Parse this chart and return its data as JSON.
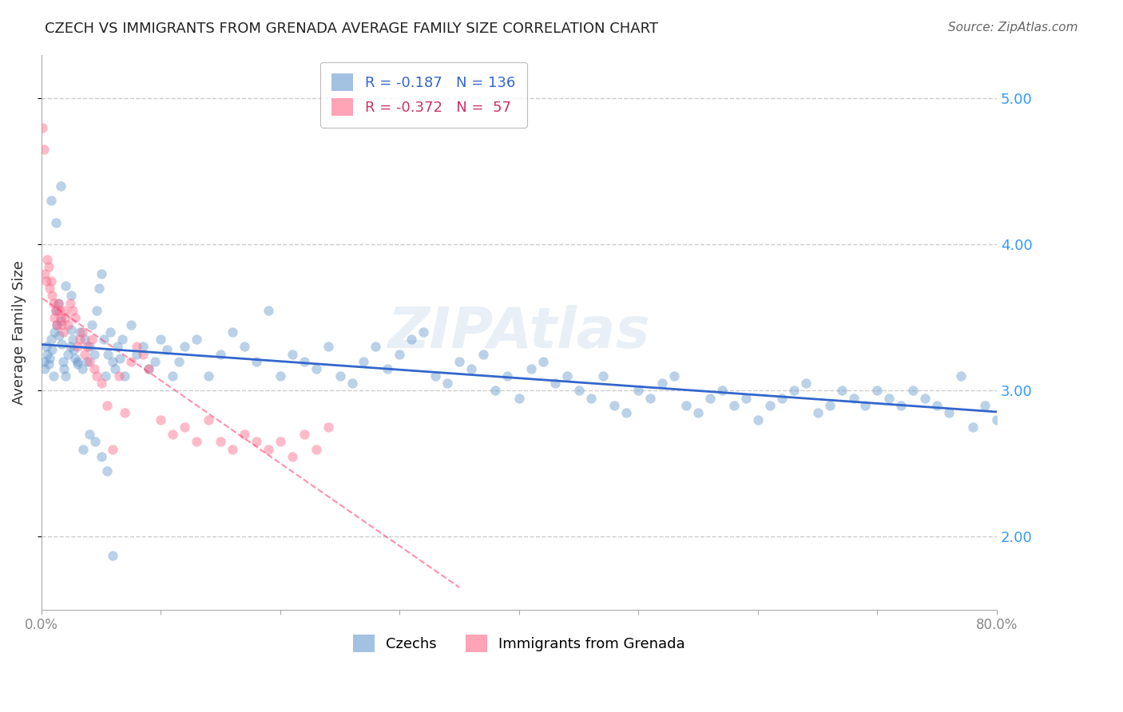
{
  "title": "CZECH VS IMMIGRANTS FROM GRENADA AVERAGE FAMILY SIZE CORRELATION CHART",
  "source": "Source: ZipAtlas.com",
  "ylabel": "Average Family Size",
  "watermark": "ZIPAtlas",
  "yticks": [
    2.0,
    3.0,
    4.0,
    5.0
  ],
  "ylim": [
    1.5,
    5.3
  ],
  "xlim": [
    0.0,
    0.8
  ],
  "xticks": [
    0.0,
    0.1,
    0.2,
    0.3,
    0.4,
    0.5,
    0.6,
    0.7,
    0.8
  ],
  "czechs_color": "#6699cc",
  "grenada_color": "#ff6688",
  "czechs_line_color": "#3366cc",
  "grenada_line_color": "#ff3366",
  "background_color": "#ffffff",
  "grid_color": "#cccccc",
  "right_tick_color": "#3399ff",
  "title_fontsize": 13,
  "source_fontsize": 11,
  "legend_fontsize": 13,
  "ylabel_fontsize": 13,
  "watermark_fontsize": 52,
  "scatter_alpha": 0.45,
  "scatter_size": 80,
  "czechs_scatter": {
    "x": [
      0.002,
      0.003,
      0.004,
      0.005,
      0.006,
      0.007,
      0.008,
      0.009,
      0.01,
      0.011,
      0.012,
      0.013,
      0.014,
      0.015,
      0.016,
      0.017,
      0.018,
      0.019,
      0.02,
      0.022,
      0.024,
      0.025,
      0.026,
      0.027,
      0.028,
      0.03,
      0.032,
      0.034,
      0.036,
      0.038,
      0.04,
      0.042,
      0.044,
      0.046,
      0.048,
      0.05,
      0.052,
      0.054,
      0.056,
      0.058,
      0.06,
      0.062,
      0.064,
      0.066,
      0.068,
      0.07,
      0.075,
      0.08,
      0.085,
      0.09,
      0.095,
      0.1,
      0.105,
      0.11,
      0.115,
      0.12,
      0.13,
      0.14,
      0.15,
      0.16,
      0.17,
      0.18,
      0.19,
      0.2,
      0.21,
      0.22,
      0.23,
      0.24,
      0.25,
      0.26,
      0.27,
      0.28,
      0.29,
      0.3,
      0.31,
      0.32,
      0.33,
      0.34,
      0.35,
      0.36,
      0.37,
      0.38,
      0.39,
      0.4,
      0.41,
      0.42,
      0.43,
      0.44,
      0.45,
      0.46,
      0.47,
      0.48,
      0.49,
      0.5,
      0.51,
      0.52,
      0.53,
      0.54,
      0.55,
      0.56,
      0.57,
      0.58,
      0.59,
      0.6,
      0.61,
      0.62,
      0.63,
      0.64,
      0.65,
      0.66,
      0.67,
      0.68,
      0.69,
      0.7,
      0.71,
      0.72,
      0.73,
      0.74,
      0.75,
      0.76,
      0.77,
      0.78,
      0.79,
      0.8,
      0.008,
      0.012,
      0.016,
      0.02,
      0.025,
      0.03,
      0.035,
      0.04,
      0.045,
      0.05,
      0.055,
      0.06
    ],
    "y": [
      3.2,
      3.15,
      3.3,
      3.25,
      3.18,
      3.22,
      3.35,
      3.28,
      3.1,
      3.4,
      3.55,
      3.45,
      3.6,
      3.38,
      3.48,
      3.32,
      3.2,
      3.15,
      3.1,
      3.25,
      3.3,
      3.42,
      3.35,
      3.28,
      3.22,
      3.18,
      3.4,
      3.15,
      3.35,
      3.2,
      3.3,
      3.45,
      3.25,
      3.55,
      3.7,
      3.8,
      3.35,
      3.1,
      3.25,
      3.4,
      3.2,
      3.15,
      3.3,
      3.22,
      3.35,
      3.1,
      3.45,
      3.25,
      3.3,
      3.15,
      3.2,
      3.35,
      3.28,
      3.1,
      3.2,
      3.3,
      3.35,
      3.1,
      3.25,
      3.4,
      3.3,
      3.2,
      3.55,
      3.1,
      3.25,
      3.2,
      3.15,
      3.3,
      3.1,
      3.05,
      3.2,
      3.3,
      3.15,
      3.25,
      3.35,
      3.4,
      3.1,
      3.05,
      3.2,
      3.15,
      3.25,
      3.0,
      3.1,
      2.95,
      3.15,
      3.2,
      3.05,
      3.1,
      3.0,
      2.95,
      3.1,
      2.9,
      2.85,
      3.0,
      2.95,
      3.05,
      3.1,
      2.9,
      2.85,
      2.95,
      3.0,
      2.9,
      2.95,
      2.8,
      2.9,
      2.95,
      3.0,
      3.05,
      2.85,
      2.9,
      3.0,
      2.95,
      2.9,
      3.0,
      2.95,
      2.9,
      3.0,
      2.95,
      2.9,
      2.85,
      3.1,
      2.75,
      2.9,
      2.8,
      4.3,
      4.15,
      4.4,
      3.72,
      3.65,
      3.2,
      2.6,
      2.7,
      2.65,
      2.55,
      2.45,
      1.87
    ]
  },
  "grenada_scatter": {
    "x": [
      0.001,
      0.002,
      0.003,
      0.004,
      0.005,
      0.006,
      0.007,
      0.008,
      0.009,
      0.01,
      0.011,
      0.012,
      0.013,
      0.014,
      0.015,
      0.016,
      0.017,
      0.018,
      0.019,
      0.02,
      0.022,
      0.024,
      0.026,
      0.028,
      0.03,
      0.032,
      0.034,
      0.036,
      0.038,
      0.04,
      0.042,
      0.044,
      0.046,
      0.05,
      0.055,
      0.06,
      0.065,
      0.07,
      0.075,
      0.08,
      0.085,
      0.09,
      0.1,
      0.11,
      0.12,
      0.13,
      0.14,
      0.15,
      0.16,
      0.17,
      0.18,
      0.19,
      0.2,
      0.21,
      0.22,
      0.23,
      0.24
    ],
    "y": [
      4.8,
      4.65,
      3.8,
      3.75,
      3.9,
      3.85,
      3.7,
      3.75,
      3.65,
      3.6,
      3.5,
      3.55,
      3.45,
      3.6,
      3.55,
      3.5,
      3.45,
      3.4,
      3.55,
      3.5,
      3.45,
      3.6,
      3.55,
      3.5,
      3.3,
      3.35,
      3.4,
      3.25,
      3.3,
      3.2,
      3.35,
      3.15,
      3.1,
      3.05,
      2.9,
      2.6,
      3.1,
      2.85,
      3.2,
      3.3,
      3.25,
      3.15,
      2.8,
      2.7,
      2.75,
      2.65,
      2.8,
      2.65,
      2.6,
      2.7,
      2.65,
      2.6,
      2.65,
      2.55,
      2.7,
      2.6,
      2.75
    ]
  }
}
